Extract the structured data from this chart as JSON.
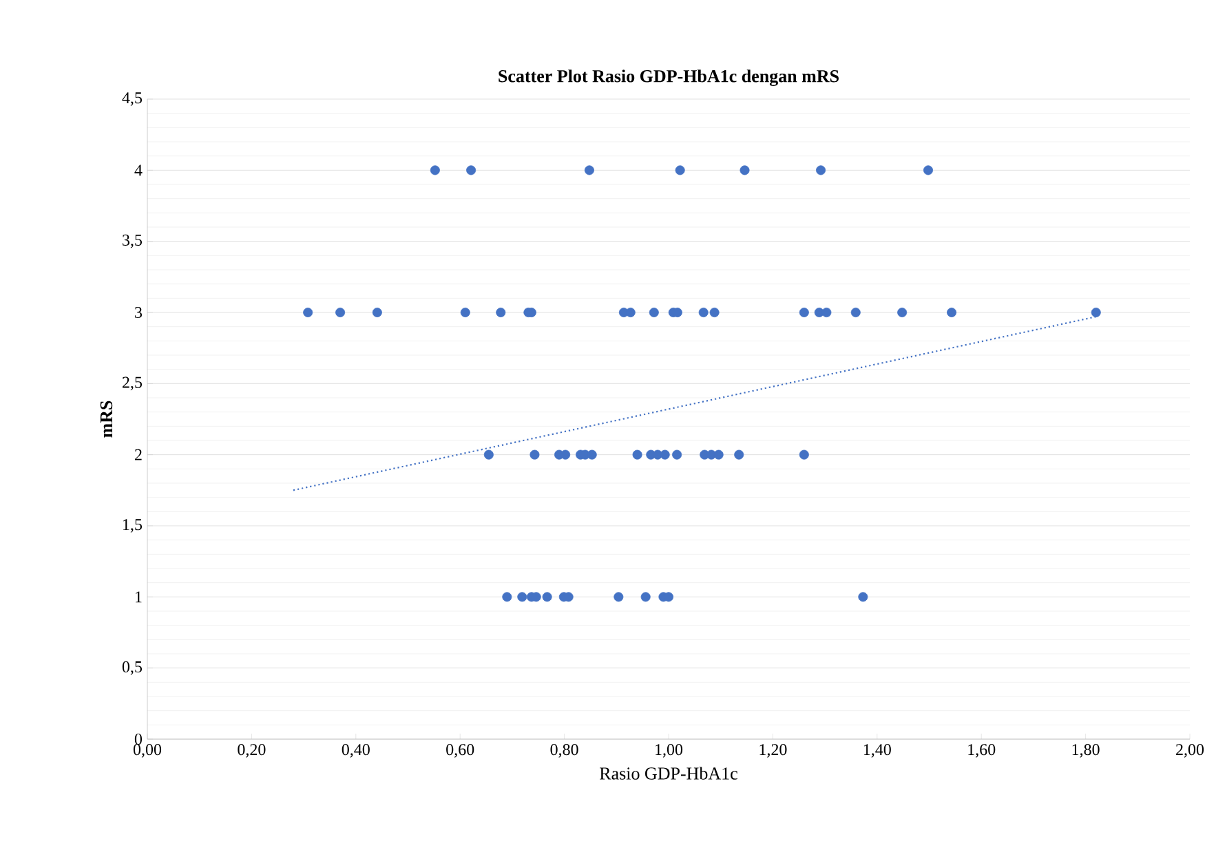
{
  "chart_data": {
    "type": "scatter",
    "title": "Scatter Plot Rasio GDP-HbA1c dengan mRS",
    "xlabel": "Rasio GDP-HbA1c",
    "ylabel": "mRS",
    "xlim": [
      0,
      2
    ],
    "ylim": [
      0,
      4.5
    ],
    "xticks": [
      {
        "value": 0,
        "label": "0,00"
      },
      {
        "value": 0.2,
        "label": "0,20"
      },
      {
        "value": 0.4,
        "label": "0,40"
      },
      {
        "value": 0.6,
        "label": "0,60"
      },
      {
        "value": 0.8,
        "label": "0,80"
      },
      {
        "value": 1,
        "label": "1,00"
      },
      {
        "value": 1.2,
        "label": "1,20"
      },
      {
        "value": 1.4,
        "label": "1,40"
      },
      {
        "value": 1.6,
        "label": "1,60"
      },
      {
        "value": 1.8,
        "label": "1,80"
      },
      {
        "value": 2,
        "label": "2,00"
      }
    ],
    "yticks": [
      0,
      {
        "value": 0.5,
        "label": "0,5"
      },
      1,
      {
        "value": 1.5,
        "label": "1,5"
      },
      2,
      {
        "value": 2.5,
        "label": "2,5"
      },
      3,
      {
        "value": 3.5,
        "label": "3,5"
      },
      4,
      {
        "value": 4.5,
        "label": "4,5"
      }
    ],
    "grid": "y",
    "marker": "circle",
    "series": [
      {
        "type": "scatter",
        "color": "#4472c4",
        "x": [
          0.552,
          0.621,
          0.848,
          1.022,
          1.146,
          1.292,
          1.498,
          0.308,
          0.37,
          0.441,
          0.61,
          0.678,
          0.731,
          0.737,
          0.914,
          0.927,
          0.972,
          1.009,
          1.017,
          1.067,
          1.088,
          1.26,
          1.289,
          1.303,
          1.359,
          1.448,
          1.543,
          1.82,
          0.655,
          0.743,
          0.79,
          0.802,
          0.831,
          0.84,
          0.853,
          0.94,
          0.966,
          0.979,
          0.993,
          1.016,
          1.069,
          1.082,
          1.096,
          1.135,
          1.26,
          0.69,
          0.719,
          0.737,
          0.746,
          0.767,
          0.799,
          0.808,
          0.904,
          0.956,
          0.99,
          1.0,
          1.373
        ],
        "values": [
          4,
          4,
          4,
          4,
          4,
          4,
          4,
          3,
          3,
          3,
          3,
          3,
          3,
          3,
          3,
          3,
          3,
          3,
          3,
          3,
          3,
          3,
          3,
          3,
          3,
          3,
          3,
          3,
          2,
          2,
          2,
          2,
          2,
          2,
          2,
          2,
          2,
          2,
          2,
          2,
          2,
          2,
          2,
          2,
          2,
          1,
          1,
          1,
          1,
          1,
          1,
          1,
          1,
          1,
          1,
          1,
          1
        ]
      },
      {
        "type": "line",
        "color": "#4472c4",
        "line_style": "dotted",
        "marker": "none",
        "x": [
          0.28,
          1.82
        ],
        "values": [
          1.75,
          2.97
        ]
      }
    ]
  }
}
